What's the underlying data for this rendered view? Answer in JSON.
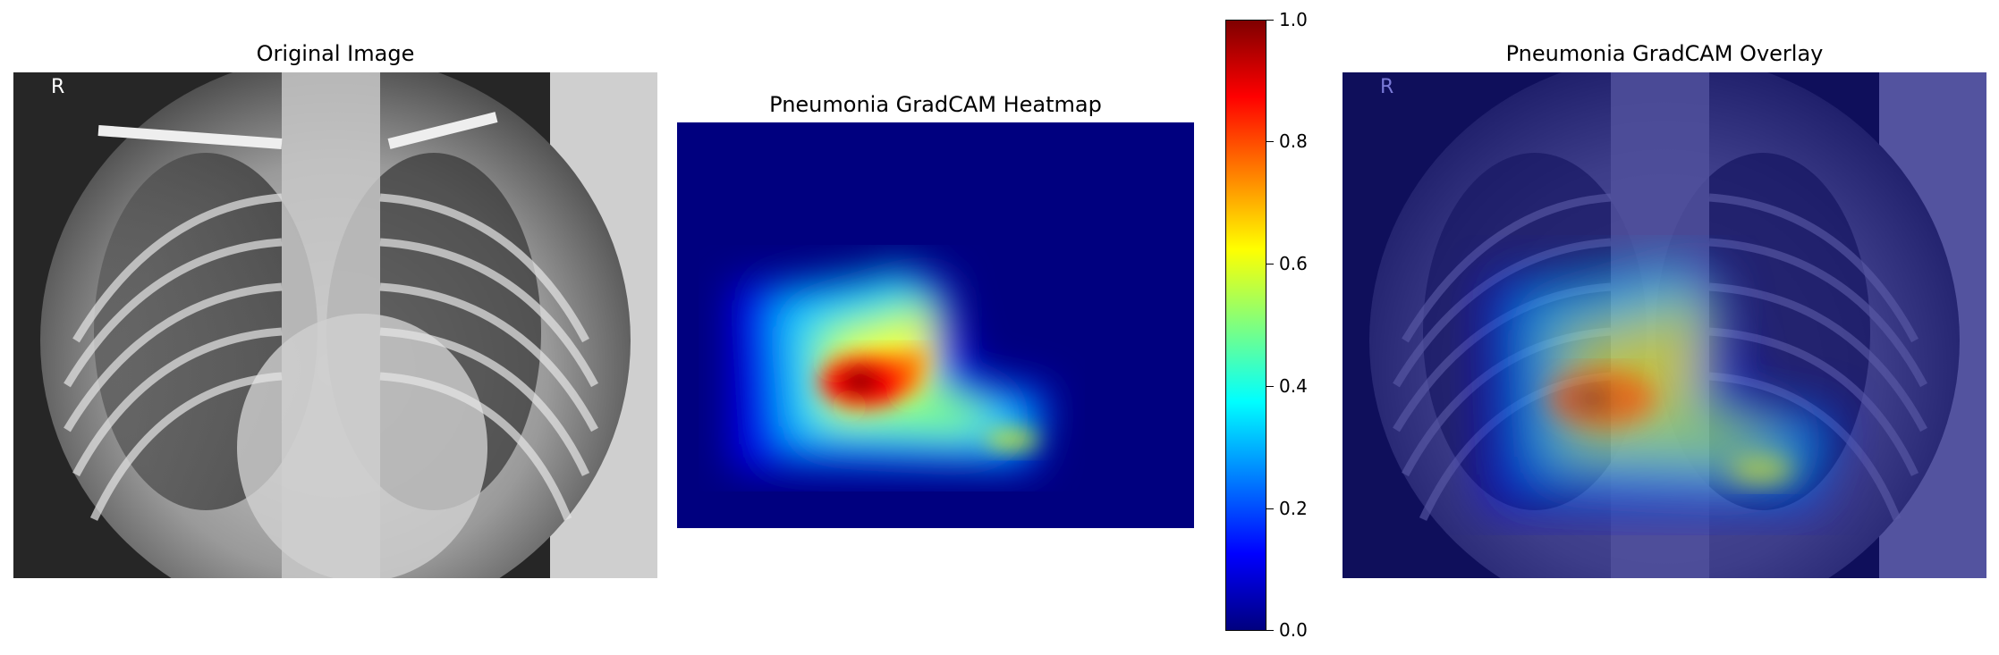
{
  "panels": {
    "original": {
      "title": "Original Image",
      "marker": "R"
    },
    "heatmap": {
      "title": "Pneumonia GradCAM Heatmap"
    },
    "overlay": {
      "title": "Pneumonia GradCAM Overlay",
      "marker": "R"
    }
  },
  "colorbar": {
    "colormap": "jet",
    "range": [
      0.0,
      1.0
    ],
    "ticks": [
      "1.0",
      "0.8",
      "0.6",
      "0.4",
      "0.2",
      "0.0"
    ],
    "tick_values": [
      1.0,
      0.8,
      0.6,
      0.4,
      0.2,
      0.0
    ]
  },
  "colors": {
    "heatmap_low": "#00007f",
    "heatmap_peak": "#7f0000",
    "marker_original": "#ffffff",
    "marker_overlay": "#7a7ad8"
  }
}
